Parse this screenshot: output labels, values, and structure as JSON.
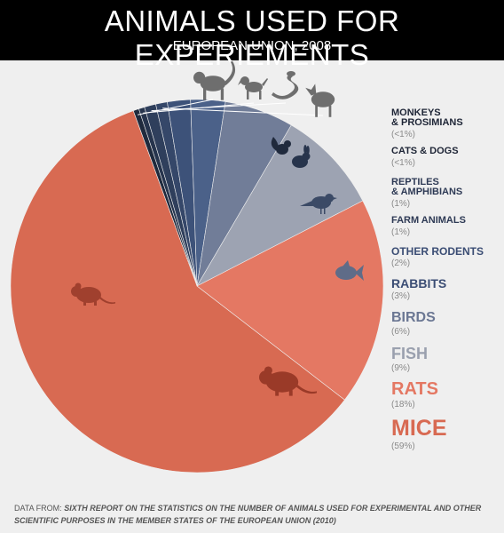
{
  "header": {
    "title": "ANIMALS USED FOR EXPERIEMENTS",
    "subtitle": "EUROPEAN UNION, 2008"
  },
  "footer": {
    "prefix": "DATA FROM:",
    "source": "SIXTH REPORT ON THE STATISTICS ON THE NUMBER OF ANIMALS USED FOR EXPERIMENTAL AND OTHER SCIENTIFIC PURPOSES IN THE MEMBER STATES OF THE EUROPEAN UNION (2010)"
  },
  "chart_data": {
    "type": "pie",
    "title": "ANIMALS USED FOR EXPERIEMENTS",
    "subtitle": "EUROPEAN UNION, 2008",
    "unit": "%",
    "legend_position": "right",
    "slices": [
      {
        "label": "MONKEYS & PROSIMIANS",
        "label_lines": [
          "MONKEYS",
          "& PROSIMIANS"
        ],
        "pct_label": "(<1%)",
        "value": 0.5,
        "color": "#1f2a3d",
        "icon": "monkey-icon"
      },
      {
        "label": "CATS & DOGS",
        "label_lines": [
          "CATS & DOGS"
        ],
        "pct_label": "(<1%)",
        "value": 0.5,
        "color": "#26344d",
        "icon": "dog-icon"
      },
      {
        "label": "REPTILES & AMPHIBIANS",
        "label_lines": [
          "REPTILES",
          "& AMPHIBIANS"
        ],
        "pct_label": "(1%)",
        "value": 1,
        "color": "#2f3f5c",
        "icon": "snake-icon"
      },
      {
        "label": "FARM ANIMALS",
        "label_lines": [
          "FARM ANIMALS"
        ],
        "pct_label": "(1%)",
        "value": 1,
        "color": "#354769",
        "icon": "sheep-icon"
      },
      {
        "label": "OTHER RODENTS",
        "label_lines": [
          "OTHER RODENTS"
        ],
        "pct_label": "(2%)",
        "value": 2,
        "color": "#3d5279",
        "icon": "squirrel-icon"
      },
      {
        "label": "RABBITS",
        "label_lines": [
          "RABBITS"
        ],
        "pct_label": "(3%)",
        "value": 3,
        "color": "#4b6189",
        "icon": "rabbit-icon"
      },
      {
        "label": "BIRDS",
        "label_lines": [
          "BIRDS"
        ],
        "pct_label": "(6%)",
        "value": 6,
        "color": "#717d98",
        "icon": "bird-icon"
      },
      {
        "label": "FISH",
        "label_lines": [
          "FISH"
        ],
        "pct_label": "(9%)",
        "value": 9,
        "color": "#9da3b2",
        "icon": "fish-icon"
      },
      {
        "label": "RATS",
        "label_lines": [
          "RATS"
        ],
        "pct_label": "(18%)",
        "value": 18,
        "color": "#e47863",
        "icon": "rat-icon"
      },
      {
        "label": "MICE",
        "label_lines": [
          "MICE"
        ],
        "pct_label": "(59%)",
        "value": 59,
        "color": "#d86a52",
        "icon": "mouse-icon"
      }
    ],
    "legend_order": [
      "MONKEYS & PROSIMIANS",
      "CATS & DOGS",
      "REPTILES & AMPHIBIANS",
      "FARM ANIMALS",
      "OTHER RODENTS",
      "RABBITS",
      "BIRDS",
      "FISH",
      "RATS",
      "MICE"
    ],
    "legend_colors": [
      "#1e2536",
      "#1e2536",
      "#2e3a55",
      "#2e3a55",
      "#3b4d74",
      "#3b4d74",
      "#6b7793",
      "#9aa0ae",
      "#e47863",
      "#d86a52"
    ]
  }
}
